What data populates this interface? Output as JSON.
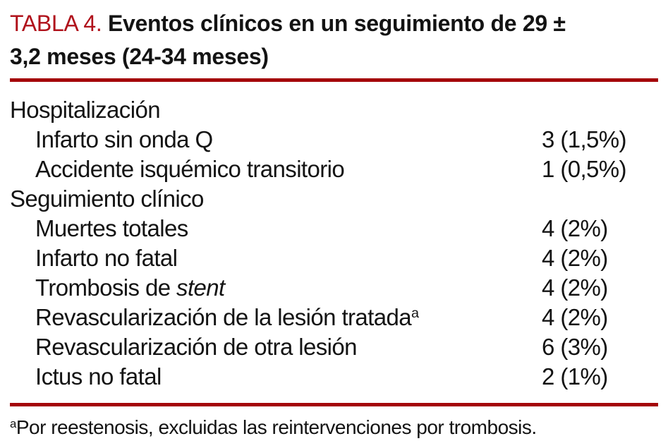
{
  "title": {
    "number_label": "TABLA 4.",
    "line1": "Eventos clínicos en un seguimiento de 29 ±",
    "line2": "3,2 meses (24-34 meses)"
  },
  "table": {
    "rows": [
      {
        "label": "Hospitalización",
        "value": "",
        "indent": 0
      },
      {
        "label": "Infarto sin onda Q",
        "value": "3 (1,5%)",
        "indent": 1
      },
      {
        "label": "Accidente isquémico transitorio",
        "value": "1 (0,5%)",
        "indent": 1
      },
      {
        "label": "Seguimiento clínico",
        "value": "",
        "indent": 0
      },
      {
        "label": "Muertes totales",
        "value": "4 (2%)",
        "indent": 1
      },
      {
        "label": "Infarto no fatal",
        "value": "4 (2%)",
        "indent": 1
      },
      {
        "label": "Trombosis de ",
        "italic": "stent",
        "value": "4 (2%)",
        "indent": 1
      },
      {
        "label": "Revascularización de la lesión tratada",
        "sup": "a",
        "value": "4 (2%)",
        "indent": 1
      },
      {
        "label": "Revascularización de otra lesión",
        "value": "6 (3%)",
        "indent": 1
      },
      {
        "label": "Ictus no fatal",
        "value": "2 (1%)",
        "indent": 1
      }
    ]
  },
  "footnote": {
    "marker": "a",
    "text": "Por reestenosis, excluidas las reintervenciones por trombosis."
  },
  "colors": {
    "title_red": "#B0121B",
    "rule_red": "#A40508",
    "text_black": "#131313"
  }
}
